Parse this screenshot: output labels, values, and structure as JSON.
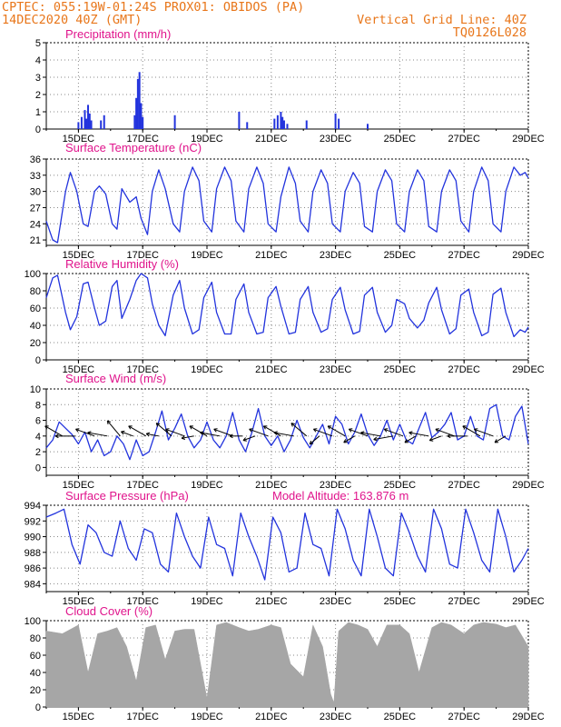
{
  "header": {
    "line1": "CPTEC:   055:19W-01:24S   PROX01: OBIDOS (PA)",
    "line2_left": "14DEC2020 40Z (GMT)",
    "line2_right": "Vertical Grid Line: 40Z",
    "line3_right": "TQ0126L028"
  },
  "colors": {
    "header": "#e8761a",
    "title": "#e0148c",
    "line": "#2233dd",
    "cloud": "#a6a6a6",
    "arrow": "#000000"
  },
  "x_labels": [
    "15DEC",
    "17DEC",
    "19DEC",
    "21DEC",
    "23DEC",
    "25DEC",
    "27DEC",
    "29DEC"
  ],
  "chart_data": [
    {
      "type": "bar",
      "title": "Precipitation (mm/h)",
      "x_range_days": [
        14.0,
        29.0
      ],
      "ylim": [
        0,
        5
      ],
      "yticks": [
        "0",
        "1",
        "2",
        "3",
        "4",
        "5"
      ],
      "x": [
        15.0,
        15.1,
        15.2,
        15.25,
        15.3,
        15.35,
        15.4,
        15.7,
        15.8,
        16.75,
        16.8,
        16.85,
        16.9,
        16.95,
        17.0,
        18.0,
        20.0,
        20.25,
        21.1,
        21.2,
        21.3,
        21.35,
        21.4,
        21.5,
        22.1,
        23.0,
        23.1,
        24.0
      ],
      "values": [
        0.4,
        0.7,
        1.1,
        0.6,
        1.4,
        0.9,
        0.5,
        0.5,
        0.8,
        0.8,
        1.8,
        2.9,
        3.3,
        1.5,
        0.7,
        0.8,
        1.0,
        0.4,
        0.6,
        0.8,
        1.0,
        0.7,
        0.5,
        0.3,
        0.5,
        0.9,
        0.6,
        0.3
      ]
    },
    {
      "type": "line",
      "title": "Surface Temperature (nC)",
      "x_range_days": [
        14.0,
        29.0
      ],
      "ylim": [
        20,
        36
      ],
      "yticks": [
        "21",
        "24",
        "27",
        "30",
        "33",
        "36"
      ],
      "series": [
        {
          "x": [
            14.0,
            14.2,
            14.35,
            14.6,
            14.75,
            14.95,
            15.15,
            15.3,
            15.5,
            15.65,
            15.85,
            16.05,
            16.2,
            16.35,
            16.6,
            16.8,
            16.95,
            17.15,
            17.3,
            17.5,
            17.7,
            17.95,
            18.15,
            18.3,
            18.55,
            18.75,
            18.9,
            19.15,
            19.3,
            19.55,
            19.75,
            19.9,
            20.15,
            20.3,
            20.55,
            20.75,
            20.9,
            21.15,
            21.3,
            21.55,
            21.75,
            21.9,
            22.15,
            22.3,
            22.55,
            22.75,
            22.9,
            23.15,
            23.3,
            23.55,
            23.75,
            23.9,
            24.15,
            24.3,
            24.55,
            24.75,
            24.9,
            25.15,
            25.3,
            25.55,
            25.75,
            25.9,
            26.15,
            26.3,
            26.55,
            26.75,
            26.9,
            27.15,
            27.3,
            27.55,
            27.75,
            27.9,
            28.15,
            28.3,
            28.55,
            28.75,
            28.9,
            29.0
          ],
          "values": [
            24.5,
            21.0,
            20.5,
            30.0,
            33.5,
            30.0,
            24.0,
            23.5,
            30.0,
            31.0,
            29.5,
            24.0,
            23.0,
            30.5,
            28.0,
            29.0,
            25.0,
            22.0,
            30.0,
            34.0,
            30.5,
            24.0,
            22.5,
            30.0,
            34.5,
            32.0,
            24.5,
            22.5,
            30.5,
            34.5,
            32.0,
            24.5,
            22.5,
            30.5,
            34.5,
            31.5,
            24.0,
            22.5,
            29.0,
            34.5,
            31.5,
            24.5,
            22.5,
            30.0,
            34.0,
            31.5,
            24.0,
            22.5,
            30.0,
            33.5,
            31.5,
            23.5,
            22.5,
            30.0,
            34.0,
            32.0,
            24.0,
            22.5,
            30.0,
            34.0,
            32.0,
            23.5,
            22.5,
            30.0,
            34.0,
            32.0,
            24.5,
            22.5,
            30.0,
            34.5,
            32.0,
            24.0,
            22.5,
            30.0,
            34.5,
            33.0,
            33.5,
            32.5
          ]
        }
      ]
    },
    {
      "type": "line",
      "title": "Relative Humidity (%)",
      "x_range_days": [
        14.0,
        29.0
      ],
      "ylim": [
        0,
        100
      ],
      "yticks": [
        "0",
        "20",
        "40",
        "60",
        "80",
        "100"
      ],
      "series": [
        {
          "x": [
            14.0,
            14.2,
            14.35,
            14.6,
            14.75,
            14.95,
            15.15,
            15.3,
            15.5,
            15.65,
            15.85,
            16.05,
            16.2,
            16.35,
            16.6,
            16.8,
            16.95,
            17.15,
            17.3,
            17.5,
            17.7,
            17.95,
            18.15,
            18.3,
            18.55,
            18.75,
            18.9,
            19.15,
            19.3,
            19.55,
            19.75,
            19.9,
            20.15,
            20.3,
            20.55,
            20.75,
            20.9,
            21.15,
            21.3,
            21.55,
            21.75,
            21.9,
            22.15,
            22.3,
            22.55,
            22.75,
            22.9,
            23.15,
            23.3,
            23.55,
            23.75,
            23.9,
            24.15,
            24.3,
            24.55,
            24.75,
            24.9,
            25.15,
            25.3,
            25.55,
            25.75,
            25.9,
            26.15,
            26.3,
            26.55,
            26.75,
            26.9,
            27.15,
            27.3,
            27.55,
            27.75,
            27.9,
            28.15,
            28.3,
            28.55,
            28.75,
            28.9,
            29.0
          ],
          "values": [
            72,
            95,
            98,
            55,
            35,
            50,
            88,
            90,
            60,
            40,
            45,
            85,
            92,
            48,
            70,
            92,
            100,
            95,
            65,
            40,
            28,
            75,
            92,
            60,
            30,
            35,
            72,
            90,
            55,
            30,
            30,
            70,
            88,
            55,
            30,
            32,
            72,
            85,
            62,
            30,
            32,
            70,
            85,
            55,
            32,
            36,
            70,
            84,
            58,
            30,
            33,
            75,
            84,
            55,
            32,
            40,
            70,
            65,
            48,
            37,
            46,
            66,
            84,
            58,
            30,
            36,
            75,
            82,
            55,
            28,
            32,
            76,
            83,
            55,
            27,
            35,
            32,
            38
          ]
        }
      ]
    },
    {
      "type": "line",
      "title": "Surface Wind (m/s)",
      "x_range_days": [
        14.0,
        29.0
      ],
      "ylim": [
        -1,
        10
      ],
      "yticks": [
        "0",
        "2",
        "4",
        "6",
        "8",
        "10"
      ],
      "series": [
        {
          "x": [
            14.0,
            14.2,
            14.4,
            14.6,
            14.8,
            15.0,
            15.2,
            15.4,
            15.6,
            15.8,
            16.0,
            16.2,
            16.4,
            16.6,
            16.8,
            17.0,
            17.2,
            17.4,
            17.6,
            17.8,
            18.0,
            18.2,
            18.4,
            18.6,
            18.8,
            19.0,
            19.2,
            19.4,
            19.6,
            19.8,
            20.0,
            20.2,
            20.4,
            20.6,
            20.8,
            21.0,
            21.2,
            21.4,
            21.6,
            21.8,
            22.0,
            22.2,
            22.4,
            22.6,
            22.8,
            23.0,
            23.2,
            23.4,
            23.6,
            23.8,
            24.0,
            24.2,
            24.4,
            24.6,
            24.8,
            25.0,
            25.2,
            25.4,
            25.6,
            25.8,
            26.0,
            26.2,
            26.4,
            26.6,
            26.8,
            27.0,
            27.2,
            27.4,
            27.6,
            27.8,
            28.0,
            28.2,
            28.4,
            28.6,
            28.8,
            29.0
          ],
          "values": [
            2.5,
            3.5,
            5.8,
            5.0,
            4.2,
            3.0,
            4.5,
            2.0,
            3.5,
            1.5,
            2.0,
            4.0,
            3.0,
            1.0,
            3.5,
            1.5,
            2.0,
            4.5,
            7.2,
            3.5,
            5.0,
            6.8,
            4.0,
            2.5,
            3.5,
            5.8,
            3.5,
            2.5,
            4.0,
            7.0,
            3.5,
            2.0,
            4.5,
            7.5,
            4.0,
            2.8,
            4.0,
            2.0,
            3.5,
            6.0,
            3.8,
            2.5,
            4.0,
            5.5,
            3.0,
            6.5,
            5.5,
            3.0,
            4.5,
            6.8,
            4.2,
            2.8,
            4.0,
            6.0,
            3.5,
            5.5,
            3.5,
            3.0,
            5.0,
            7.0,
            3.8,
            4.5,
            5.5,
            7.0,
            3.5,
            4.0,
            6.5,
            4.0,
            3.5,
            7.5,
            8.0,
            4.0,
            3.5,
            6.5,
            7.8,
            3.0
          ]
        }
      ],
      "arrows_x": [
        14.5,
        14.9,
        15.5,
        15.9,
        16.3,
        16.7,
        17.1,
        17.5,
        17.9,
        18.3,
        18.6,
        19.0,
        19.4,
        19.8,
        20.1,
        20.5,
        20.9,
        21.3,
        21.7,
        22.1,
        22.5,
        22.9,
        23.3,
        23.6,
        24.0,
        24.4,
        24.8,
        25.1,
        25.5,
        25.9,
        26.3,
        26.7,
        27.1,
        27.5,
        27.9,
        28.3
      ],
      "arrows_dir_deg": [
        210,
        180,
        200,
        190,
        230,
        200,
        210,
        190,
        220,
        200,
        170,
        210,
        190,
        200,
        180,
        160,
        200,
        210,
        190,
        220,
        140,
        200,
        210,
        150,
        200,
        190,
        170,
        200,
        150,
        190,
        160,
        200,
        180,
        210,
        200,
        150
      ],
      "arrows_len": [
        1,
        1,
        1,
        1,
        1,
        0.5,
        1,
        0.5,
        1,
        1,
        0.5,
        1,
        1,
        1,
        0.5,
        0.5,
        1,
        1,
        1,
        1,
        0.5,
        1,
        1,
        0.5,
        1,
        1,
        1,
        1,
        0.5,
        1,
        0.5,
        1,
        1,
        1,
        1,
        0.5
      ]
    },
    {
      "type": "line",
      "title": "Surface Pressure (hPa)",
      "subtitle": "Model Altitude: 163.876 m",
      "x_range_days": [
        14.0,
        29.0
      ],
      "ylim": [
        983,
        994
      ],
      "yticks": [
        "984",
        "986",
        "988",
        "990",
        "992",
        "994"
      ],
      "series": [
        {
          "x": [
            14.0,
            14.3,
            14.55,
            14.8,
            15.05,
            15.3,
            15.55,
            15.8,
            16.05,
            16.3,
            16.55,
            16.8,
            17.05,
            17.3,
            17.55,
            17.8,
            18.05,
            18.3,
            18.55,
            18.8,
            19.05,
            19.3,
            19.55,
            19.8,
            20.05,
            20.3,
            20.55,
            20.8,
            21.05,
            21.3,
            21.55,
            21.8,
            22.05,
            22.3,
            22.55,
            22.8,
            23.05,
            23.3,
            23.55,
            23.8,
            24.05,
            24.3,
            24.55,
            24.8,
            25.05,
            25.3,
            25.55,
            25.8,
            26.05,
            26.3,
            26.55,
            26.8,
            27.05,
            27.3,
            27.55,
            27.8,
            28.05,
            28.3,
            28.55,
            28.8,
            29.0
          ],
          "values": [
            992.5,
            993.0,
            993.5,
            989.0,
            986.5,
            991.5,
            990.5,
            988.0,
            987.5,
            992.0,
            988.5,
            987.0,
            991.0,
            990.5,
            986.5,
            985.5,
            993.0,
            990.0,
            987.5,
            986.0,
            992.5,
            989.0,
            988.5,
            985.0,
            993.0,
            990.0,
            987.5,
            984.5,
            992.5,
            990.5,
            985.5,
            986.0,
            993.0,
            989.0,
            988.5,
            985.0,
            993.5,
            991.0,
            987.0,
            985.0,
            993.5,
            990.0,
            986.0,
            985.0,
            993.0,
            990.5,
            987.5,
            985.5,
            993.5,
            991.0,
            986.5,
            986.0,
            993.5,
            990.5,
            987.0,
            985.5,
            993.5,
            990.0,
            985.5,
            987.0,
            988.5
          ]
        }
      ]
    },
    {
      "type": "area",
      "title": "Cloud Cover (%)",
      "x_range_days": [
        14.0,
        29.0
      ],
      "ylim": [
        0,
        100
      ],
      "yticks": [
        "0",
        "20",
        "40",
        "60",
        "80",
        "100"
      ],
      "x": [
        14.0,
        14.5,
        15.0,
        15.3,
        15.6,
        15.9,
        16.2,
        16.5,
        16.8,
        17.1,
        17.4,
        17.7,
        18.0,
        18.3,
        18.6,
        19.0,
        19.3,
        19.6,
        20.0,
        20.3,
        20.6,
        21.0,
        21.3,
        21.6,
        22.0,
        22.3,
        22.6,
        22.85,
        22.95,
        23.1,
        23.4,
        23.7,
        24.0,
        24.3,
        24.6,
        25.0,
        25.3,
        25.6,
        26.0,
        26.3,
        26.6,
        27.0,
        27.3,
        27.6,
        28.0,
        28.3,
        28.6,
        29.0
      ],
      "values": [
        88,
        85,
        95,
        40,
        85,
        88,
        92,
        70,
        30,
        92,
        95,
        55,
        88,
        90,
        90,
        10,
        95,
        98,
        92,
        88,
        90,
        95,
        92,
        50,
        35,
        95,
        70,
        15,
        5,
        88,
        98,
        95,
        90,
        70,
        95,
        95,
        85,
        40,
        92,
        98,
        95,
        85,
        95,
        98,
        96,
        92,
        95,
        70
      ]
    }
  ]
}
